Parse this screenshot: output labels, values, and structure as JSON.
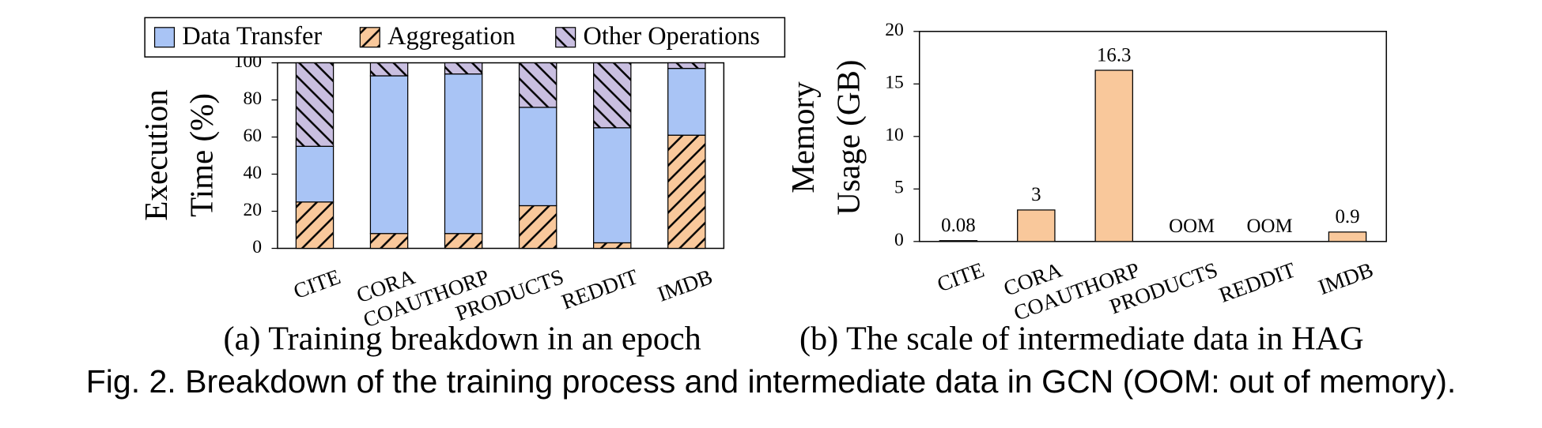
{
  "figure_caption": "Fig. 2.  Breakdown of the training process and intermediate data in GCN (OOM: out of memory).",
  "chart_data": [
    {
      "type": "stacked_bar",
      "caption": "(a) Training breakdown in an epoch",
      "ylabel": [
        "Execution",
        "Time  (%)"
      ],
      "categories": [
        "CITE",
        "CORA",
        "COAUTHORP",
        "PRODUCTS",
        "REDDIT",
        "IMDB"
      ],
      "series": [
        {
          "name": "Data Transfer",
          "color": "#a9c4f5",
          "hatch": "none",
          "values": [
            30,
            85,
            86,
            53,
            62,
            36
          ]
        },
        {
          "name": "Aggregation",
          "color": "#f9c89b",
          "hatch": "/",
          "values": [
            25,
            8,
            8,
            23,
            3,
            61
          ]
        },
        {
          "name": "Other Operations",
          "color": "#c9bfe0",
          "hatch": "\\",
          "values": [
            45,
            7,
            6,
            24,
            35,
            3
          ]
        }
      ],
      "stack_order": [
        1,
        0,
        2
      ],
      "ylim": [
        0,
        100
      ],
      "yticks": [
        0,
        20,
        40,
        60,
        80,
        100
      ],
      "grid": false
    },
    {
      "type": "bar",
      "caption": "(b) The scale of intermediate data in HAG",
      "ylabel": [
        "Memory",
        "Usage (GB)"
      ],
      "categories": [
        "CITE",
        "CORA",
        "COAUTHORP",
        "PRODUCTS",
        "REDDIT",
        "IMDB"
      ],
      "values": [
        0.08,
        3,
        16.3,
        null,
        null,
        0.9
      ],
      "value_labels": [
        "0.08",
        "3",
        "16.3",
        "OOM",
        "OOM",
        "0.9"
      ],
      "color": "#f9c89b",
      "ylim": [
        0,
        20
      ],
      "yticks": [
        0,
        5,
        10,
        15,
        20
      ],
      "grid": false
    }
  ]
}
